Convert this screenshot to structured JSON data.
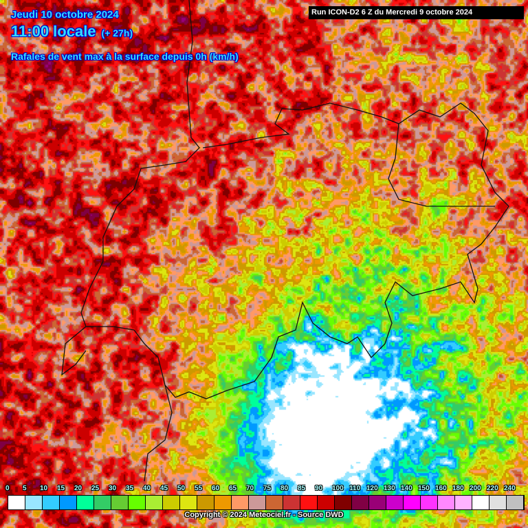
{
  "header": {
    "date": "Jeudi 10 octobre 2024",
    "time": "11:00 locale",
    "lead": "(+ 27h)",
    "parameter": "Rafales de vent max à la surface depuis 0h (km/h)",
    "run": "Run ICON-D2 6 Z du Mercredi 9 octobre 2024"
  },
  "legend": {
    "unit": "km/h",
    "labels": [
      "0",
      "5",
      "10",
      "15",
      "20",
      "25",
      "30",
      "35",
      "40",
      "45",
      "50",
      "55",
      "60",
      "65",
      "70",
      "75",
      "80",
      "85",
      "90",
      "100",
      "110",
      "120",
      "130",
      "140",
      "150",
      "160",
      "180",
      "200",
      "220",
      "240"
    ],
    "colors": [
      "#ffffff",
      "#99e6ff",
      "#33ccff",
      "#0099ff",
      "#00ff99",
      "#33cc66",
      "#66cc33",
      "#66ff00",
      "#aaee33",
      "#cccc00",
      "#dde611",
      "#cc9900",
      "#ee9900",
      "#ff9966",
      "#cc9999",
      "#cc6633",
      "#cc3333",
      "#ff1111",
      "#cc0000",
      "#800000",
      "#800044",
      "#990077",
      "#cc00cc",
      "#ff00ff",
      "#ff33ff",
      "#ff88ff",
      "#ffb3ff",
      "#ffffff",
      "#e0e0e0",
      "#c0c0c0"
    ]
  },
  "copyright": "Copyright © 2024 Meteociel.fr - Source DWD"
}
